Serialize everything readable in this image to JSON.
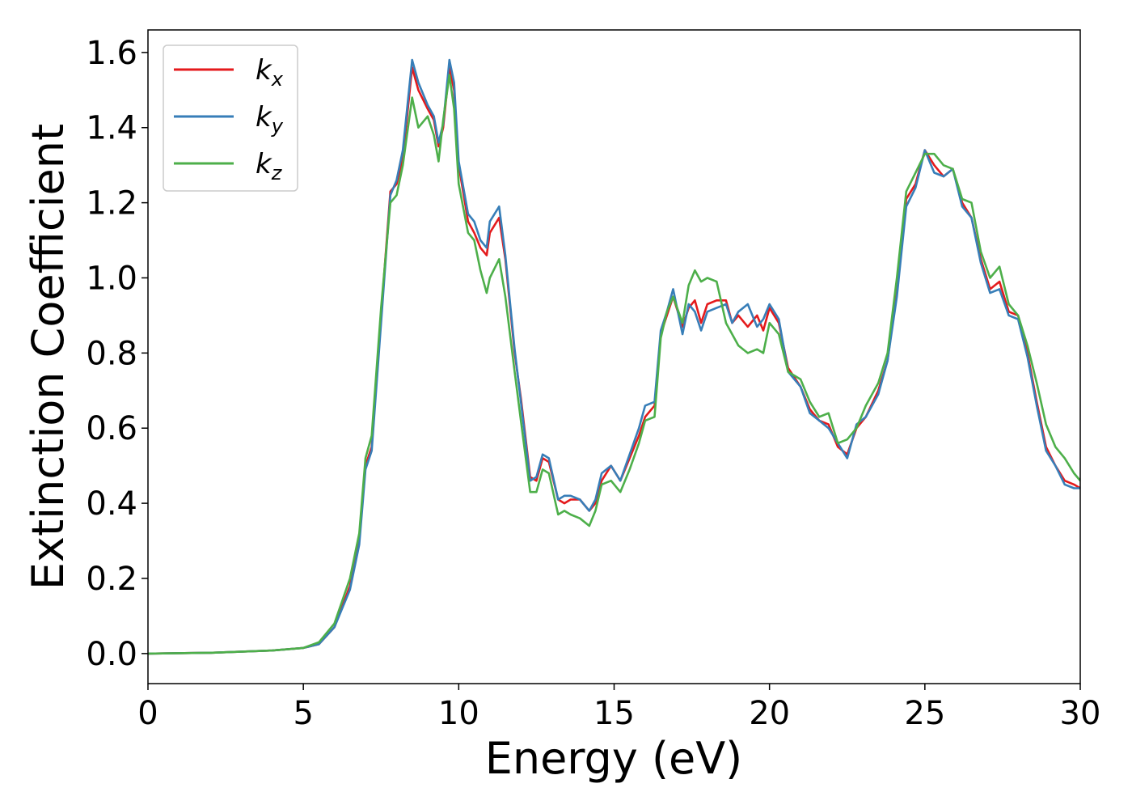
{
  "chart_data": {
    "type": "line",
    "title": "",
    "xlabel": "Energy (eV)",
    "ylabel": "Extinction Coefficient",
    "xlim": [
      0,
      30
    ],
    "ylim": [
      -0.08,
      1.66
    ],
    "xticks": [
      0,
      5,
      10,
      15,
      20,
      25,
      30
    ],
    "xtick_labels": [
      "0",
      "5",
      "10",
      "15",
      "20",
      "25",
      "30"
    ],
    "yticks": [
      0.0,
      0.2,
      0.4,
      0.6,
      0.8,
      1.0,
      1.2,
      1.4,
      1.6
    ],
    "ytick_labels": [
      "0.0",
      "0.2",
      "0.4",
      "0.6",
      "0.8",
      "1.0",
      "1.2",
      "1.4",
      "1.6"
    ],
    "grid": false,
    "legend_position": "top-left",
    "series": [
      {
        "name": "k",
        "subscript": "x",
        "color": "#e41a1c",
        "x": [
          0,
          2,
          4,
          5,
          5.5,
          6,
          6.5,
          6.8,
          7,
          7.2,
          7.5,
          7.8,
          8,
          8.2,
          8.5,
          8.7,
          9,
          9.2,
          9.35,
          9.5,
          9.7,
          9.85,
          10,
          10.3,
          10.5,
          10.7,
          10.9,
          11,
          11.3,
          11.5,
          11.8,
          12,
          12.3,
          12.5,
          12.7,
          12.9,
          13.2,
          13.4,
          13.6,
          13.9,
          14.2,
          14.4,
          14.6,
          14.9,
          15.2,
          15.5,
          15.8,
          16,
          16.3,
          16.5,
          16.7,
          16.9,
          17.2,
          17.4,
          17.6,
          17.8,
          18,
          18.3,
          18.6,
          18.8,
          19,
          19.3,
          19.6,
          19.8,
          20,
          20.3,
          20.6,
          21,
          21.3,
          21.6,
          21.9,
          22.2,
          22.5,
          22.8,
          23.1,
          23.5,
          23.8,
          24.1,
          24.4,
          24.7,
          25,
          25.3,
          25.6,
          25.9,
          26.2,
          26.5,
          26.8,
          27.1,
          27.4,
          27.7,
          28,
          28.3,
          28.6,
          28.9,
          29.2,
          29.5,
          29.8,
          30
        ],
        "values": [
          0,
          0.002,
          0.008,
          0.015,
          0.025,
          0.07,
          0.18,
          0.3,
          0.5,
          0.55,
          0.9,
          1.23,
          1.25,
          1.32,
          1.56,
          1.5,
          1.45,
          1.42,
          1.35,
          1.4,
          1.56,
          1.5,
          1.3,
          1.15,
          1.12,
          1.08,
          1.06,
          1.12,
          1.16,
          1.05,
          0.8,
          0.68,
          0.47,
          0.46,
          0.52,
          0.51,
          0.41,
          0.4,
          0.41,
          0.41,
          0.38,
          0.4,
          0.46,
          0.5,
          0.46,
          0.52,
          0.58,
          0.63,
          0.66,
          0.85,
          0.9,
          0.95,
          0.87,
          0.92,
          0.94,
          0.88,
          0.93,
          0.94,
          0.94,
          0.88,
          0.9,
          0.87,
          0.9,
          0.86,
          0.92,
          0.88,
          0.76,
          0.71,
          0.65,
          0.62,
          0.61,
          0.55,
          0.53,
          0.6,
          0.63,
          0.7,
          0.78,
          0.97,
          1.21,
          1.25,
          1.34,
          1.3,
          1.27,
          1.29,
          1.2,
          1.16,
          1.05,
          0.97,
          0.99,
          0.91,
          0.9,
          0.8,
          0.67,
          0.55,
          0.5,
          0.46,
          0.45,
          0.44
        ]
      },
      {
        "name": "k",
        "subscript": "y",
        "color": "#377eb8",
        "x": [
          0,
          2,
          4,
          5,
          5.5,
          6,
          6.5,
          6.8,
          7,
          7.2,
          7.5,
          7.8,
          8,
          8.2,
          8.5,
          8.7,
          9,
          9.2,
          9.35,
          9.5,
          9.7,
          9.85,
          10,
          10.3,
          10.5,
          10.7,
          10.9,
          11,
          11.3,
          11.5,
          11.8,
          12,
          12.3,
          12.5,
          12.7,
          12.9,
          13.2,
          13.4,
          13.6,
          13.9,
          14.2,
          14.4,
          14.6,
          14.9,
          15.2,
          15.5,
          15.8,
          16,
          16.3,
          16.5,
          16.7,
          16.9,
          17.2,
          17.4,
          17.6,
          17.8,
          18,
          18.3,
          18.6,
          18.8,
          19,
          19.3,
          19.6,
          19.8,
          20,
          20.3,
          20.6,
          21,
          21.3,
          21.6,
          21.9,
          22.2,
          22.5,
          22.8,
          23.1,
          23.5,
          23.8,
          24.1,
          24.4,
          24.7,
          25,
          25.3,
          25.6,
          25.9,
          26.2,
          26.5,
          26.8,
          27.1,
          27.4,
          27.7,
          28,
          28.3,
          28.6,
          28.9,
          29.2,
          29.5,
          29.8,
          30
        ],
        "values": [
          0,
          0.002,
          0.008,
          0.015,
          0.025,
          0.07,
          0.17,
          0.29,
          0.49,
          0.54,
          0.88,
          1.22,
          1.26,
          1.34,
          1.58,
          1.52,
          1.46,
          1.43,
          1.36,
          1.41,
          1.58,
          1.52,
          1.31,
          1.17,
          1.15,
          1.1,
          1.08,
          1.15,
          1.19,
          1.06,
          0.81,
          0.67,
          0.46,
          0.47,
          0.53,
          0.52,
          0.41,
          0.42,
          0.42,
          0.41,
          0.38,
          0.41,
          0.48,
          0.5,
          0.46,
          0.53,
          0.6,
          0.66,
          0.67,
          0.86,
          0.91,
          0.97,
          0.85,
          0.93,
          0.91,
          0.86,
          0.91,
          0.92,
          0.93,
          0.88,
          0.91,
          0.93,
          0.87,
          0.89,
          0.93,
          0.89,
          0.75,
          0.71,
          0.64,
          0.62,
          0.6,
          0.56,
          0.52,
          0.61,
          0.63,
          0.69,
          0.78,
          0.95,
          1.19,
          1.24,
          1.34,
          1.28,
          1.27,
          1.29,
          1.19,
          1.16,
          1.04,
          0.96,
          0.97,
          0.9,
          0.89,
          0.79,
          0.66,
          0.54,
          0.5,
          0.45,
          0.44,
          0.44
        ]
      },
      {
        "name": "k",
        "subscript": "z",
        "color": "#4daf4a",
        "x": [
          0,
          2,
          4,
          5,
          5.5,
          6,
          6.5,
          6.8,
          7,
          7.2,
          7.5,
          7.8,
          8,
          8.2,
          8.5,
          8.7,
          9,
          9.2,
          9.35,
          9.5,
          9.7,
          9.85,
          10,
          10.3,
          10.5,
          10.7,
          10.9,
          11,
          11.3,
          11.5,
          11.8,
          12,
          12.3,
          12.5,
          12.7,
          12.9,
          13.2,
          13.4,
          13.6,
          13.9,
          14.2,
          14.4,
          14.6,
          14.9,
          15.2,
          15.5,
          15.8,
          16,
          16.3,
          16.5,
          16.7,
          16.9,
          17.2,
          17.4,
          17.6,
          17.8,
          18,
          18.3,
          18.6,
          18.8,
          19,
          19.3,
          19.6,
          19.8,
          20,
          20.3,
          20.6,
          21,
          21.3,
          21.6,
          21.9,
          22.2,
          22.5,
          22.8,
          23.1,
          23.5,
          23.8,
          24.1,
          24.4,
          24.7,
          25,
          25.3,
          25.6,
          25.9,
          26.2,
          26.5,
          26.8,
          27.1,
          27.4,
          27.7,
          28,
          28.3,
          28.6,
          28.9,
          29.2,
          29.5,
          29.8,
          30
        ],
        "values": [
          0,
          0.002,
          0.008,
          0.015,
          0.03,
          0.08,
          0.2,
          0.32,
          0.52,
          0.58,
          0.92,
          1.2,
          1.22,
          1.3,
          1.48,
          1.4,
          1.43,
          1.38,
          1.31,
          1.42,
          1.54,
          1.45,
          1.25,
          1.12,
          1.1,
          1.02,
          0.96,
          1.0,
          1.05,
          0.95,
          0.75,
          0.62,
          0.43,
          0.43,
          0.49,
          0.48,
          0.37,
          0.38,
          0.37,
          0.36,
          0.34,
          0.38,
          0.45,
          0.46,
          0.43,
          0.49,
          0.56,
          0.62,
          0.63,
          0.84,
          0.91,
          0.95,
          0.88,
          0.98,
          1.02,
          0.99,
          1.0,
          0.99,
          0.88,
          0.85,
          0.82,
          0.8,
          0.81,
          0.8,
          0.88,
          0.85,
          0.75,
          0.73,
          0.67,
          0.63,
          0.64,
          0.56,
          0.57,
          0.6,
          0.66,
          0.72,
          0.8,
          1.0,
          1.23,
          1.28,
          1.33,
          1.33,
          1.3,
          1.29,
          1.21,
          1.2,
          1.07,
          1.0,
          1.03,
          0.93,
          0.9,
          0.82,
          0.72,
          0.61,
          0.55,
          0.52,
          0.48,
          0.46
        ]
      }
    ]
  }
}
